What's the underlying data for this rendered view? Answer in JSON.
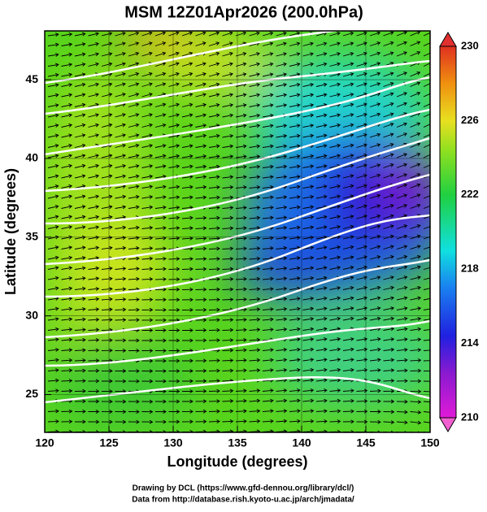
{
  "chart_data": {
    "type": "map",
    "title": "MSM 12Z01Apr2026 (200.0hPa)",
    "xlabel": "Longitude (degrees)",
    "ylabel": "Latitude  (degrees)",
    "xlim": [
      120,
      150
    ],
    "xticks": [
      120,
      125,
      130,
      135,
      140,
      145,
      150
    ],
    "ylim": [
      22.6,
      48.1
    ],
    "yticks": [
      25,
      30,
      35,
      40,
      45
    ],
    "grid": true,
    "colorbar": {
      "ylim": [
        210,
        230
      ],
      "yticks": [
        210,
        214,
        218,
        222,
        226,
        230
      ]
    }
  },
  "footer": [
    "Drawing by DCL (https://www.gfd-dennou.org/library/dcl/)",
    "Data from http://database.rish.kyoto-u.ac.jp/arch/jmadata/"
  ]
}
